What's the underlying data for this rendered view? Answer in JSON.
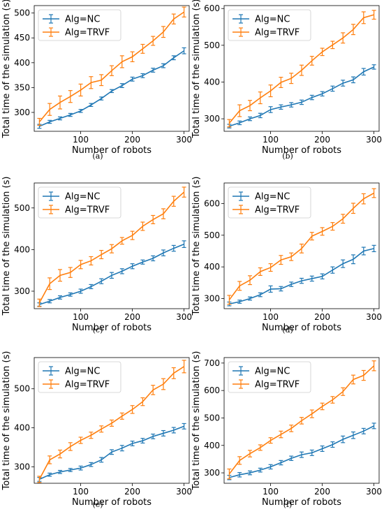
{
  "colors": {
    "nc": "#1f77b4",
    "trvf": "#ff7f0e"
  },
  "chart_data": [
    {
      "type": "line",
      "caption": "(a)",
      "xlabel": "Number of robots",
      "ylabel": "Total time of the simulation (s)",
      "x": [
        20,
        40,
        60,
        80,
        100,
        120,
        140,
        160,
        180,
        200,
        220,
        240,
        260,
        280,
        300
      ],
      "xlim": [
        10,
        310
      ],
      "ylim": [
        262,
        515
      ],
      "xticks": [
        100,
        200,
        300
      ],
      "yticks": [
        300,
        350,
        400,
        450,
        500
      ],
      "legend_position": "top-left",
      "series": [
        {
          "name": "Alg=NC",
          "color": "#1f77b4",
          "values": [
            272,
            281,
            288,
            295,
            303,
            315,
            328,
            343,
            354,
            367,
            374,
            385,
            394,
            410,
            424
          ],
          "err": [
            4,
            3,
            3,
            3,
            3,
            3,
            3,
            3,
            4,
            4,
            4,
            4,
            4,
            4,
            6
          ]
        },
        {
          "name": "Alg=TRVF",
          "color": "#ff7f0e",
          "values": [
            281,
            306,
            320,
            332,
            345,
            360,
            365,
            384,
            402,
            412,
            428,
            444,
            462,
            488,
            502
          ],
          "err": [
            7,
            12,
            13,
            12,
            12,
            12,
            11,
            10,
            12,
            10,
            9,
            9,
            11,
            10,
            10
          ]
        }
      ]
    },
    {
      "type": "line",
      "caption": "(b)",
      "xlabel": "Number of robots",
      "ylabel": "Total time of the simulation (s)",
      "x": [
        20,
        40,
        60,
        80,
        100,
        120,
        140,
        160,
        180,
        200,
        220,
        240,
        260,
        280,
        300
      ],
      "xlim": [
        10,
        310
      ],
      "ylim": [
        266,
        608
      ],
      "xticks": [
        100,
        200,
        300
      ],
      "yticks": [
        300,
        400,
        500,
        600
      ],
      "legend_position": "top-left",
      "series": [
        {
          "name": "Alg=NC",
          "color": "#1f77b4",
          "values": [
            280,
            289,
            300,
            309,
            325,
            332,
            338,
            345,
            358,
            368,
            382,
            397,
            406,
            428,
            441
          ],
          "err": [
            5,
            5,
            5,
            6,
            8,
            6,
            6,
            6,
            6,
            6,
            7,
            8,
            8,
            9,
            6
          ]
        },
        {
          "name": "Alg=TRVF",
          "color": "#ff7f0e",
          "values": [
            288,
            322,
            336,
            357,
            376,
            399,
            410,
            432,
            458,
            482,
            501,
            520,
            543,
            575,
            583
          ],
          "err": [
            10,
            16,
            14,
            16,
            16,
            14,
            14,
            14,
            12,
            10,
            10,
            14,
            14,
            16,
            12
          ]
        }
      ]
    },
    {
      "type": "line",
      "caption": "(c)",
      "xlabel": "Number of robots",
      "ylabel": "Total time of the simulation (s)",
      "x": [
        20,
        40,
        60,
        80,
        100,
        120,
        140,
        160,
        180,
        200,
        220,
        240,
        260,
        280,
        300
      ],
      "xlim": [
        10,
        310
      ],
      "ylim": [
        258,
        560
      ],
      "xticks": [
        100,
        200,
        300
      ],
      "yticks": [
        300,
        400,
        500
      ],
      "legend_position": "top-left",
      "series": [
        {
          "name": "Alg=NC",
          "color": "#1f77b4",
          "values": [
            268,
            276,
            285,
            292,
            300,
            311,
            324,
            338,
            348,
            360,
            370,
            379,
            392,
            403,
            413
          ],
          "err": [
            4,
            4,
            4,
            4,
            5,
            5,
            6,
            7,
            6,
            6,
            5,
            6,
            7,
            7,
            8
          ]
        },
        {
          "name": "Alg=TRVF",
          "color": "#ff7f0e",
          "values": [
            272,
            318,
            338,
            345,
            364,
            373,
            388,
            402,
            421,
            434,
            456,
            472,
            486,
            516,
            538
          ],
          "err": [
            9,
            14,
            14,
            12,
            10,
            10,
            10,
            10,
            8,
            10,
            10,
            10,
            12,
            12,
            12
          ]
        }
      ]
    },
    {
      "type": "line",
      "caption": "(d)",
      "xlabel": "Number of robots",
      "ylabel": "Total time of the simulation (s)",
      "x": [
        20,
        40,
        60,
        80,
        100,
        120,
        140,
        160,
        180,
        200,
        220,
        240,
        260,
        280,
        300
      ],
      "xlim": [
        10,
        310
      ],
      "ylim": [
        268,
        665
      ],
      "xticks": [
        100,
        200,
        300
      ],
      "yticks": [
        300,
        400,
        500,
        600
      ],
      "legend_position": "top-left",
      "series": [
        {
          "name": "Alg=NC",
          "color": "#1f77b4",
          "values": [
            283,
            290,
            300,
            312,
            330,
            331,
            345,
            356,
            363,
            370,
            390,
            410,
            424,
            450,
            458
          ],
          "err": [
            6,
            5,
            5,
            6,
            10,
            7,
            7,
            8,
            8,
            8,
            10,
            12,
            14,
            12,
            10
          ]
        },
        {
          "name": "Alg=TRVF",
          "color": "#ff7f0e",
          "values": [
            296,
            340,
            358,
            385,
            398,
            422,
            432,
            458,
            497,
            512,
            528,
            552,
            585,
            615,
            633
          ],
          "err": [
            14,
            14,
            14,
            12,
            12,
            14,
            12,
            14,
            12,
            12,
            12,
            14,
            16,
            16,
            14
          ]
        }
      ]
    },
    {
      "type": "line",
      "caption": "(e)",
      "xlabel": "Number of robots",
      "ylabel": "Total time of the simulation (s)",
      "x": [
        20,
        40,
        60,
        80,
        100,
        120,
        140,
        160,
        180,
        200,
        220,
        240,
        260,
        280,
        300
      ],
      "xlim": [
        10,
        310
      ],
      "ylim": [
        258,
        580
      ],
      "xticks": [
        100,
        200,
        300
      ],
      "yticks": [
        300,
        400,
        500
      ],
      "legend_position": "top-left",
      "series": [
        {
          "name": "Alg=NC",
          "color": "#1f77b4",
          "values": [
            268,
            280,
            287,
            292,
            297,
            306,
            318,
            338,
            348,
            360,
            367,
            378,
            386,
            394,
            404
          ],
          "err": [
            5,
            4,
            4,
            4,
            5,
            5,
            6,
            6,
            7,
            6,
            6,
            6,
            7,
            7,
            7
          ]
        },
        {
          "name": "Alg=TRVF",
          "color": "#ff7f0e",
          "values": [
            268,
            318,
            333,
            352,
            368,
            381,
            397,
            412,
            430,
            447,
            467,
            497,
            512,
            540,
            557
          ],
          "err": [
            8,
            10,
            10,
            10,
            8,
            8,
            8,
            8,
            8,
            10,
            10,
            12,
            14,
            14,
            16
          ]
        }
      ]
    },
    {
      "type": "line",
      "caption": "(f)",
      "xlabel": "Number of robots",
      "ylabel": "Total time of the simulation (s)",
      "x": [
        20,
        40,
        60,
        80,
        100,
        120,
        140,
        160,
        180,
        200,
        220,
        240,
        260,
        280,
        300
      ],
      "xlim": [
        10,
        310
      ],
      "ylim": [
        262,
        720
      ],
      "xticks": [
        100,
        200,
        300
      ],
      "yticks": [
        300,
        400,
        500,
        600,
        700
      ],
      "legend_position": "top-left",
      "series": [
        {
          "name": "Alg=NC",
          "color": "#1f77b4",
          "values": [
            283,
            293,
            300,
            310,
            322,
            337,
            353,
            366,
            373,
            388,
            403,
            422,
            437,
            452,
            471
          ],
          "err": [
            8,
            8,
            7,
            7,
            8,
            8,
            8,
            10,
            10,
            10,
            10,
            12,
            12,
            10,
            10
          ]
        },
        {
          "name": "Alg=TRVF",
          "color": "#ff7f0e",
          "values": [
            296,
            345,
            370,
            392,
            418,
            440,
            462,
            490,
            515,
            542,
            566,
            596,
            640,
            655,
            690
          ],
          "err": [
            18,
            14,
            12,
            10,
            10,
            12,
            12,
            12,
            14,
            12,
            12,
            14,
            16,
            18,
            18
          ]
        }
      ]
    }
  ]
}
